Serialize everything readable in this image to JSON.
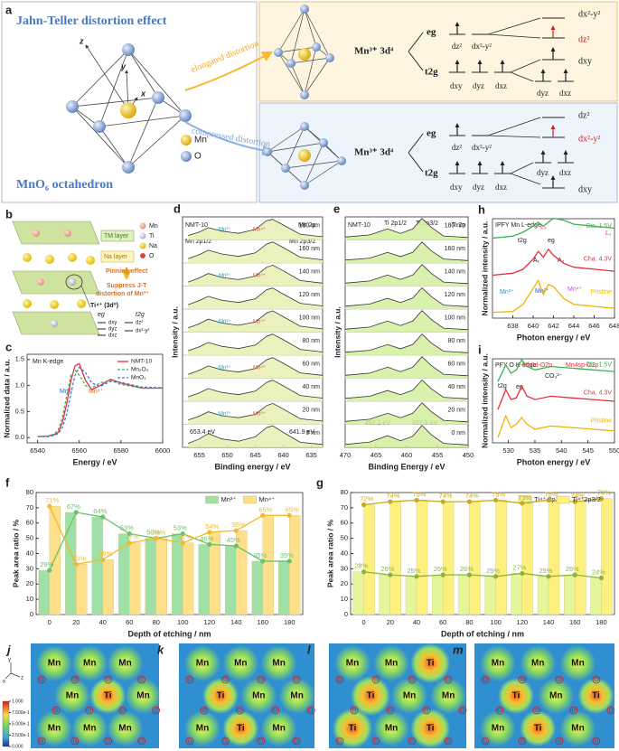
{
  "diagram_a": {
    "panel": "a",
    "title": "Jahn-Teller distortion effect",
    "caption": "MnO₆ octahedron",
    "legend": [
      "Mn",
      "O"
    ],
    "axes": [
      "z",
      "y",
      "x"
    ],
    "arrows": [
      "elongated distortion",
      "compressed distortion"
    ],
    "ion": "Mn³⁺  3d⁴",
    "levels": [
      "eg",
      "t2g"
    ],
    "elongated": [
      "dz²",
      "dx²-y²",
      "dxy",
      "dyz",
      "dxz",
      "dx²-y²",
      "dz²",
      "dxy",
      "dyz",
      "dxz"
    ],
    "compressed": [
      "dz²",
      "dx²-y²",
      "dxy",
      "dyz",
      "dxz",
      "dz²",
      "dx²-y²",
      "dyz",
      "dxz",
      "dxy"
    ]
  },
  "diagram_b": {
    "panel": "b",
    "legend": [
      "Mn",
      "Ti",
      "Na",
      "O"
    ],
    "layers": [
      "TM layer",
      "Na layer"
    ],
    "effect": "Pinning effect",
    "result": [
      "Suppress J-T",
      "distortion of Mn³⁺"
    ],
    "ion": "Ti⁴⁺ (3d⁰)",
    "levels": [
      "eg",
      "t2g"
    ],
    "orbitals": [
      "dxy",
      "dyz",
      "dxz",
      "dz²",
      "dx²-y²"
    ]
  },
  "chart_data": [
    {
      "panel": "c",
      "type": "line",
      "xlabel": "Energy / eV",
      "ylabel": "Normalized data / a.u.",
      "annotations": [
        "Mn K-edge",
        "Mn³⁺",
        "Mn⁴⁺"
      ],
      "x": [
        6540,
        6545,
        6548,
        6550,
        6552,
        6554,
        6556,
        6558,
        6560,
        6563,
        6566,
        6570,
        6575,
        6580,
        6590,
        6600
      ],
      "series": [
        {
          "name": "NMT-10",
          "color": "#e8303a",
          "values": [
            0.02,
            0.03,
            0.06,
            0.1,
            0.3,
            0.65,
            1.1,
            1.38,
            1.42,
            1.1,
            0.92,
            1.0,
            1.12,
            1.05,
            0.95,
            0.95
          ]
        },
        {
          "name": "Mn₂O₃",
          "color": "#4cae4c",
          "dash": true,
          "values": [
            0.02,
            0.03,
            0.07,
            0.15,
            0.4,
            0.8,
            1.2,
            1.3,
            1.2,
            1.0,
            0.95,
            1.05,
            1.1,
            1.02,
            0.95,
            0.95
          ]
        },
        {
          "name": "MnO₂",
          "color": "#4a78d0",
          "dash": true,
          "values": [
            0.02,
            0.02,
            0.04,
            0.08,
            0.2,
            0.45,
            0.85,
            1.2,
            1.35,
            1.25,
            1.05,
            0.98,
            1.08,
            1.06,
            0.97,
            0.96
          ]
        }
      ],
      "xlim": [
        6535,
        6600
      ],
      "xticks": [
        6540,
        6560,
        6580,
        6600
      ],
      "ylim": [
        -0.1,
        1.6
      ],
      "yticks": [
        {
          "value": 0,
          "label": "0.0"
        },
        {
          "value": 0.5,
          "label": "0.5"
        },
        {
          "value": 1,
          "label": "1.0"
        },
        {
          "value": 1.5,
          "label": "1.5"
        }
      ],
      "legend": "upper right"
    },
    {
      "panel": "d",
      "type": "line",
      "offset": true,
      "fill": "#e8eeb0",
      "xlabel": "Binding energy / eV",
      "ylabel": "Intensity / a.u.",
      "annotations": [
        "NMT-10",
        "Mn 2p",
        "Mn 2p1/2",
        "Mn 2p3/2",
        "653.4 eV",
        "641.9 eV"
      ],
      "species": [
        "Mn³⁺",
        "Mn⁴⁺"
      ],
      "x": [
        657,
        655,
        653.4,
        651,
        648,
        645,
        643,
        641.9,
        640,
        637,
        633
      ],
      "series": [
        {
          "name": "180 nm",
          "color": "#333333",
          "values": [
            0.12,
            0.28,
            0.48,
            0.32,
            0.22,
            0.4,
            0.8,
            0.86,
            0.6,
            0.18,
            0.06
          ]
        },
        {
          "name": "160 nm",
          "color": "#333333",
          "values": [
            0.12,
            0.3,
            0.5,
            0.33,
            0.22,
            0.38,
            0.78,
            0.88,
            0.62,
            0.18,
            0.06
          ]
        },
        {
          "name": "140 nm",
          "color": "#333333",
          "values": [
            0.1,
            0.29,
            0.49,
            0.31,
            0.21,
            0.37,
            0.77,
            0.87,
            0.61,
            0.17,
            0.05
          ]
        },
        {
          "name": "120 nm",
          "color": "#333333",
          "values": [
            0.12,
            0.31,
            0.5,
            0.32,
            0.22,
            0.39,
            0.8,
            0.88,
            0.6,
            0.18,
            0.06
          ]
        },
        {
          "name": "100 nm",
          "color": "#333333",
          "values": [
            0.11,
            0.3,
            0.51,
            0.33,
            0.23,
            0.38,
            0.79,
            0.89,
            0.62,
            0.19,
            0.06
          ]
        },
        {
          "name": "80 nm",
          "color": "#333333",
          "values": [
            0.12,
            0.3,
            0.5,
            0.32,
            0.22,
            0.38,
            0.78,
            0.88,
            0.62,
            0.18,
            0.06
          ]
        },
        {
          "name": "60 nm",
          "color": "#333333",
          "values": [
            0.1,
            0.28,
            0.48,
            0.3,
            0.2,
            0.36,
            0.76,
            0.86,
            0.6,
            0.16,
            0.05
          ]
        },
        {
          "name": "40 nm",
          "color": "#333333",
          "values": [
            0.12,
            0.3,
            0.5,
            0.32,
            0.22,
            0.38,
            0.78,
            0.88,
            0.62,
            0.18,
            0.06
          ]
        },
        {
          "name": "20 nm",
          "color": "#333333",
          "values": [
            0.11,
            0.29,
            0.49,
            0.31,
            0.22,
            0.37,
            0.77,
            0.87,
            0.61,
            0.17,
            0.06
          ]
        },
        {
          "name": "0 nm",
          "color": "#333333",
          "values": [
            0.1,
            0.3,
            0.55,
            0.3,
            0.2,
            0.4,
            0.82,
            0.9,
            0.6,
            0.15,
            0.05
          ]
        }
      ],
      "xlim": [
        658,
        633
      ],
      "xticks": [
        655,
        650,
        645,
        640,
        635
      ],
      "ylim": [
        0,
        1
      ]
    },
    {
      "panel": "e",
      "type": "line",
      "offset": true,
      "fill": "#d3efa0",
      "xlabel": "Binding Energy / eV",
      "ylabel": "Intensity / a.u.",
      "annotations": [
        "NMT-10",
        "Ti 2p1/2",
        "Ti 2p3/2",
        "Ti 2p",
        "463.1 eV",
        "457.5 eV"
      ],
      "x": [
        470,
        466,
        463.1,
        461,
        459,
        457.5,
        456,
        454,
        450
      ],
      "series": [
        {
          "name": "180 nm",
          "color": "#333333",
          "values": [
            0.05,
            0.15,
            0.42,
            0.22,
            0.42,
            0.9,
            0.5,
            0.1,
            0.03
          ]
        },
        {
          "name": "160 nm",
          "color": "#333333",
          "values": [
            0.05,
            0.14,
            0.4,
            0.21,
            0.41,
            0.88,
            0.48,
            0.1,
            0.03
          ]
        },
        {
          "name": "140 nm",
          "color": "#333333",
          "values": [
            0.05,
            0.15,
            0.42,
            0.22,
            0.42,
            0.9,
            0.5,
            0.1,
            0.03
          ]
        },
        {
          "name": "120 nm",
          "color": "#333333",
          "values": [
            0.05,
            0.15,
            0.41,
            0.22,
            0.42,
            0.89,
            0.49,
            0.1,
            0.03
          ]
        },
        {
          "name": "100 nm",
          "color": "#333333",
          "values": [
            0.05,
            0.15,
            0.42,
            0.22,
            0.42,
            0.9,
            0.5,
            0.1,
            0.03
          ]
        },
        {
          "name": "80 nm",
          "color": "#333333",
          "values": [
            0.05,
            0.14,
            0.4,
            0.21,
            0.41,
            0.88,
            0.48,
            0.1,
            0.03
          ]
        },
        {
          "name": "60 nm",
          "color": "#333333",
          "values": [
            0.05,
            0.15,
            0.42,
            0.22,
            0.42,
            0.9,
            0.5,
            0.1,
            0.03
          ]
        },
        {
          "name": "40 nm",
          "color": "#333333",
          "values": [
            0.05,
            0.15,
            0.41,
            0.22,
            0.42,
            0.89,
            0.49,
            0.1,
            0.03
          ]
        },
        {
          "name": "20 nm",
          "color": "#333333",
          "values": [
            0.05,
            0.15,
            0.42,
            0.22,
            0.42,
            0.9,
            0.5,
            0.1,
            0.03
          ]
        },
        {
          "name": "0 nm",
          "color": "#333333",
          "values": [
            0.05,
            0.16,
            0.45,
            0.22,
            0.42,
            0.92,
            0.5,
            0.1,
            0.03
          ]
        }
      ],
      "xlim": [
        470,
        450
      ],
      "xticks": [
        470,
        465,
        460,
        455,
        450
      ],
      "ylim": [
        0,
        1
      ]
    },
    {
      "panel": "h",
      "type": "line",
      "offset": true,
      "xlabel": "Photon energy / eV",
      "ylabel": "Normalized intensity / a.u.",
      "annotations": [
        "IPFY  Mn L-edge",
        "L₃",
        "L₂",
        "t2g",
        "eg",
        "A₁",
        "A₂",
        "Mn³⁺",
        "Mn²⁺",
        "Mn⁴⁺"
      ],
      "x": [
        636,
        638,
        639,
        640,
        640.5,
        641,
        641.5,
        642,
        643,
        644,
        646,
        648
      ],
      "series": [
        {
          "name": "Dis. 1.5V",
          "color": "#3cb44b",
          "values": [
            0.3,
            0.35,
            0.45,
            0.6,
            0.7,
            0.6,
            0.7,
            0.8,
            0.75,
            0.65,
            0.6,
            0.55
          ]
        },
        {
          "name": "Cha. 4.3V",
          "color": "#e8303a",
          "values": [
            0.2,
            0.25,
            0.35,
            0.6,
            0.8,
            0.65,
            0.85,
            0.7,
            0.5,
            0.4,
            0.35,
            0.3
          ]
        },
        {
          "name": "Pristine",
          "color": "#f0b400",
          "values": [
            0.1,
            0.12,
            0.3,
            0.7,
            0.9,
            0.55,
            0.8,
            0.75,
            0.45,
            0.3,
            0.25,
            0.2
          ]
        }
      ],
      "xlim": [
        636,
        648
      ],
      "xticks": [
        638,
        640,
        642,
        644,
        646,
        648
      ],
      "ylim": [
        0,
        1
      ]
    },
    {
      "panel": "i",
      "type": "line",
      "offset": true,
      "xlabel": "Photon energy / eV",
      "ylabel": "Normalized intensity / a.u.",
      "annotations": [
        "PFY  O K-edge",
        "Mn3d-O2p",
        "Mn4sp-O2p",
        "CO₃²⁻",
        "t2g",
        "eg"
      ],
      "x": [
        528,
        529.5,
        530.5,
        531.5,
        532.5,
        533.5,
        535,
        538,
        542,
        546,
        550
      ],
      "series": [
        {
          "name": "Dis. 1.5V",
          "color": "#3cb44b",
          "values": [
            0.1,
            0.6,
            0.35,
            0.45,
            0.75,
            0.55,
            0.45,
            0.55,
            0.5,
            0.45,
            0.4
          ]
        },
        {
          "name": "Cha. 4.3V",
          "color": "#e8303a",
          "values": [
            0.1,
            0.7,
            0.4,
            0.45,
            0.8,
            0.5,
            0.4,
            0.5,
            0.45,
            0.4,
            0.35
          ]
        },
        {
          "name": "Pristine",
          "color": "#f0b400",
          "values": [
            0.1,
            0.75,
            0.4,
            0.5,
            0.7,
            0.5,
            0.35,
            0.45,
            0.4,
            0.35,
            0.3
          ]
        }
      ],
      "xlim": [
        527,
        550
      ],
      "xticks": [
        530,
        535,
        540,
        545,
        550
      ],
      "ylim": [
        0,
        1
      ]
    },
    {
      "panel": "f",
      "type": "bar",
      "xlabel": "Depth of etching / nm",
      "ylabel": "Peak area ratio / %",
      "x": [
        0,
        20,
        40,
        60,
        80,
        100,
        120,
        140,
        160,
        180
      ],
      "series": [
        {
          "name": "Mn³⁺",
          "color": "#9ee0a6",
          "line": "#6cbf6c",
          "values": [
            29,
            67,
            64,
            53,
            50,
            53,
            46,
            45,
            35,
            35
          ],
          "value_labels": [
            "29%",
            "67%",
            "64%",
            "53%",
            "50%",
            "53%",
            "46%",
            "45%",
            "35%",
            "35%"
          ]
        },
        {
          "name": "Mn⁴⁺",
          "color": "#ffe08a",
          "line": "#f2bb2e",
          "values": [
            71,
            33,
            36,
            47,
            50,
            47,
            54,
            55,
            65,
            65
          ],
          "value_labels": [
            "71%",
            "33%",
            "36%",
            "47%",
            "50%",
            "47%",
            "54%",
            "55%",
            "65%",
            "65%"
          ]
        }
      ],
      "xlim": [
        -10,
        190
      ],
      "xticks": [
        0,
        20,
        40,
        60,
        80,
        100,
        120,
        140,
        160,
        180
      ],
      "ylim": [
        0,
        80
      ],
      "yticks": [
        0,
        10,
        20,
        30,
        40,
        50,
        60,
        70,
        80
      ],
      "legend": "upper center"
    },
    {
      "panel": "g",
      "type": "bar",
      "xlabel": "Depth of etching / nm",
      "ylabel": "Peak area ratio / %",
      "x": [
        0,
        20,
        40,
        60,
        80,
        100,
        120,
        140,
        160,
        180
      ],
      "series": [
        {
          "name": "Ti⁴⁺ 2p1/2",
          "color": "#e4f59a",
          "line": "#8fb33a",
          "values": [
            28,
            26,
            25,
            26,
            26,
            25,
            27,
            25,
            26,
            24
          ],
          "value_labels": [
            "28%",
            "26%",
            "25%",
            "26%",
            "26%",
            "25%",
            "27%",
            "25%",
            "26%",
            "24%"
          ]
        },
        {
          "name": "Ti⁴⁺2p3/2",
          "color": "#fdf07e",
          "line": "#c9a81c",
          "values": [
            72,
            74,
            75,
            74,
            74,
            75,
            73,
            75,
            74,
            76
          ],
          "value_labels": [
            "72%",
            "74%",
            "75%",
            "74%",
            "74%",
            "75%",
            "73%",
            "75%",
            "74%",
            "76%"
          ]
        }
      ],
      "xlim": [
        -10,
        190
      ],
      "xticks": [
        0,
        20,
        40,
        60,
        80,
        100,
        120,
        140,
        160,
        180
      ],
      "ylim": [
        0,
        80
      ],
      "yticks": [
        0,
        10,
        20,
        30,
        40,
        50,
        60,
        70,
        80
      ],
      "legend": "upper center"
    }
  ],
  "maps": {
    "axes": [
      "y",
      "z",
      "x"
    ],
    "colorbar": {
      "lim": [
        0,
        1
      ],
      "ticks": [
        {
          "value": 1,
          "label": "1.000"
        },
        {
          "value": 0.75,
          "label": "7.500e-1"
        },
        {
          "value": 0.5,
          "label": "5.000e-1"
        },
        {
          "value": 0.25,
          "label": "2.500e-1"
        },
        {
          "value": 0,
          "label": "0.000"
        }
      ]
    },
    "items": [
      {
        "panel": "j",
        "metals": [
          "Mn",
          "Mn",
          "Mn",
          "Mn",
          "Ti",
          "Mn",
          "Mn",
          "Mn",
          "Mn"
        ],
        "oxygens": [
          "O",
          "O",
          "O",
          "O",
          "O",
          "O",
          "O",
          "O",
          "O",
          "O",
          "O",
          "O"
        ]
      },
      {
        "panel": "k",
        "metals": [
          "Mn",
          "Mn",
          "Mn",
          "Ti",
          "Mn",
          "Mn",
          "Mn",
          "Ti",
          "Mn"
        ],
        "oxygens": [
          "O",
          "O",
          "O",
          "O",
          "O",
          "O",
          "O",
          "O",
          "O",
          "O",
          "O",
          "O"
        ]
      },
      {
        "panel": "l",
        "metals": [
          "Mn",
          "Mn",
          "Ti",
          "Ti",
          "Mn",
          "Mn",
          "Ti",
          "Mn",
          "Ti"
        ],
        "oxygens": [
          "O",
          "O",
          "O",
          "O",
          "O",
          "O",
          "O",
          "O",
          "O",
          "O",
          "O",
          "O"
        ]
      },
      {
        "panel": "m",
        "metals": [
          "Mn",
          "Mn",
          "Mn",
          "Ti",
          "Mn",
          "Ti",
          "Mn",
          "Ti",
          "Mn"
        ],
        "oxygens": [
          "O",
          "O",
          "O",
          "O",
          "O",
          "O",
          "O",
          "O",
          "O",
          "O",
          "O",
          "O"
        ]
      }
    ]
  }
}
